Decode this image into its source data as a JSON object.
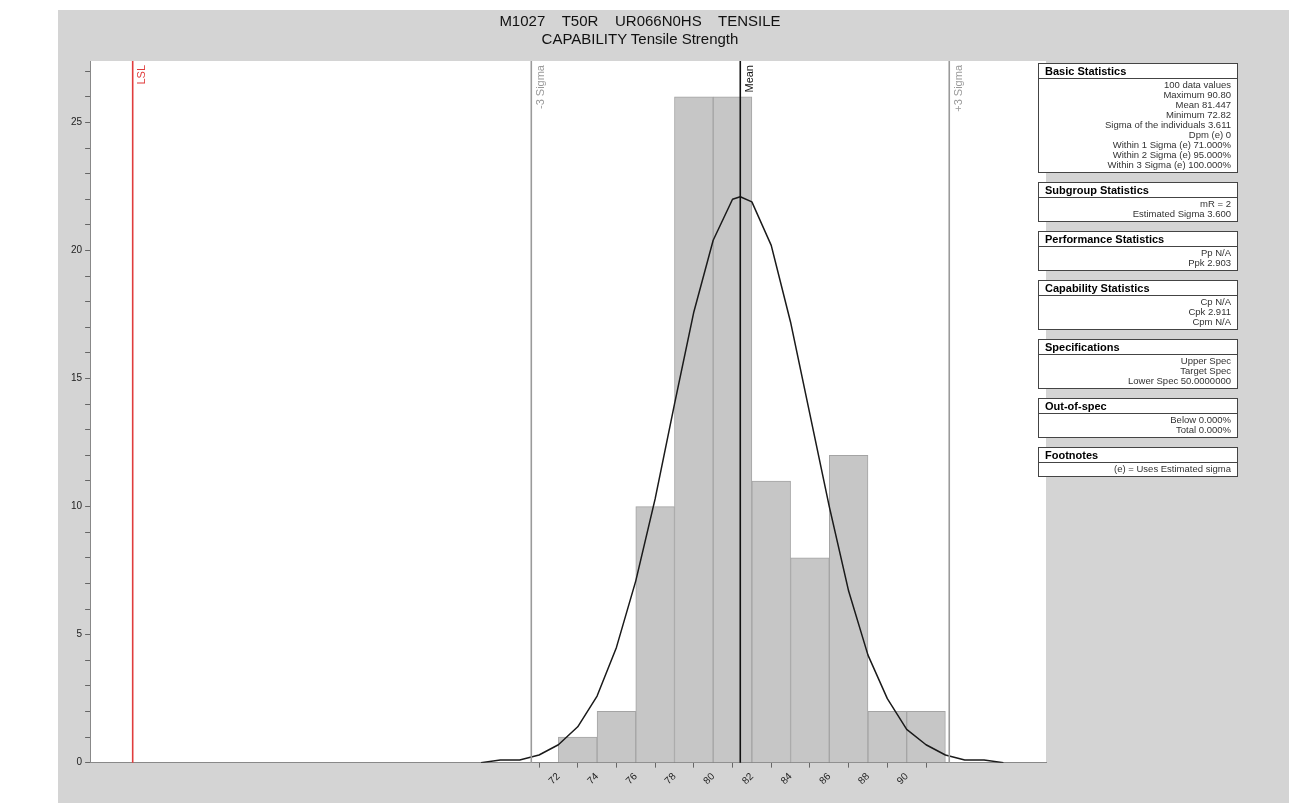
{
  "chart_data": [
    {
      "type": "histogram",
      "title": "M1027    T50R    UR066N0HS    TENSILE",
      "subtitle": "CAPABILITY Tensile Strength",
      "bins": [
        72,
        74,
        76,
        78,
        80,
        82,
        84,
        86,
        88,
        90,
        92
      ],
      "values": [
        1,
        2,
        10,
        26,
        26,
        11,
        8,
        12,
        2,
        2
      ],
      "color": "#c6c6c6",
      "series": [
        {
          "type": "line",
          "color": "#1a1a1a",
          "x": [
            68,
            69,
            70,
            71,
            72,
            73,
            74,
            75,
            76,
            77,
            78,
            79,
            80,
            81,
            81.4,
            82,
            83,
            84,
            85,
            86,
            87,
            88,
            89,
            90,
            91,
            92,
            93,
            94,
            95
          ],
          "values": [
            0.0,
            0.1,
            0.1,
            0.3,
            0.7,
            1.4,
            2.6,
            4.5,
            7.1,
            10.3,
            14.0,
            17.6,
            20.4,
            22.0,
            22.1,
            21.9,
            20.2,
            17.2,
            13.6,
            10.0,
            6.7,
            4.2,
            2.5,
            1.3,
            0.7,
            0.3,
            0.1,
            0.1,
            0.0
          ]
        }
      ],
      "marker": "none",
      "xlim": [
        47.8,
        97.2
      ],
      "xticks": [
        72,
        74,
        76,
        78,
        80,
        82,
        84,
        86,
        88,
        90
      ],
      "ylim": [
        0,
        27.4
      ],
      "yticks": [
        0,
        {
          "value": 1,
          "label": null
        },
        {
          "value": 2,
          "label": null
        },
        {
          "value": 3,
          "label": null
        },
        {
          "value": 4,
          "label": null
        },
        5,
        {
          "value": 6,
          "label": null
        },
        {
          "value": 7,
          "label": null
        },
        {
          "value": 8,
          "label": null
        },
        {
          "value": 9,
          "label": null
        },
        10,
        {
          "value": 11,
          "label": null
        },
        {
          "value": 12,
          "label": null
        },
        {
          "value": 13,
          "label": null
        },
        {
          "value": 14,
          "label": null
        },
        15,
        {
          "value": 16,
          "label": null
        },
        {
          "value": 17,
          "label": null
        },
        {
          "value": 18,
          "label": null
        },
        {
          "value": 19,
          "label": null
        },
        20,
        {
          "value": 21,
          "label": null
        },
        {
          "value": 22,
          "label": null
        },
        {
          "value": 23,
          "label": null
        },
        {
          "value": 24,
          "label": null
        },
        25,
        {
          "value": 26,
          "label": null
        },
        {
          "value": 27,
          "label": null
        }
      ],
      "ref_lines": [
        {
          "axis": "x",
          "value": 50,
          "label": "LSL",
          "color": "#e03c3c"
        },
        {
          "axis": "x",
          "value": 70.6,
          "label": "-3 Sigma",
          "color": "#9a9a9a"
        },
        {
          "axis": "x",
          "value": 81.4,
          "label": "Mean",
          "color": "#111111"
        },
        {
          "axis": "x",
          "value": 92.2,
          "label": "+3 Sigma",
          "color": "#9a9a9a"
        }
      ]
    },
    {
      "type": "other",
      "title": "Basic Statistics",
      "annotations": [
        "100 data values",
        "Maximum 90.80",
        "Mean 81.447",
        "Minimum 72.82",
        "Sigma of the individuals 3.611",
        "Dpm (e) 0",
        "Within 1 Sigma (e) 71.000%",
        "Within 2 Sigma (e) 95.000%",
        "Within 3 Sigma (e) 100.000%"
      ]
    },
    {
      "type": "other",
      "title": "Subgroup Statistics",
      "annotations": [
        "mR = 2",
        "Estimated Sigma 3.600"
      ]
    },
    {
      "type": "other",
      "title": "Performance Statistics",
      "annotations": [
        "Pp N/A",
        "Ppk 2.903"
      ]
    },
    {
      "type": "other",
      "title": "Capability Statistics",
      "annotations": [
        "Cp N/A",
        "Cpk 2.911",
        "Cpm N/A"
      ]
    },
    {
      "type": "other",
      "title": "Specifications",
      "annotations": [
        "Upper Spec",
        "Target Spec",
        "Lower Spec 50.0000000"
      ]
    },
    {
      "type": "other",
      "title": "Out-of-spec",
      "annotations": [
        "Below 0.000%",
        "Total 0.000%"
      ]
    },
    {
      "type": "other",
      "title": "Footnotes",
      "annotations": [
        "(e) = Uses Estimated sigma"
      ]
    }
  ]
}
